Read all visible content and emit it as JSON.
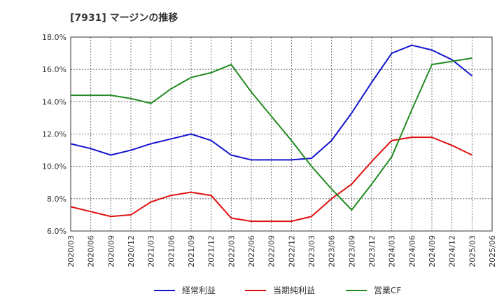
{
  "chart_data": {
    "type": "line",
    "title": "[7931]  マージンの推移",
    "xlabel": "",
    "ylabel": "",
    "ylim": [
      6.0,
      18.0
    ],
    "y_ticks": [
      6.0,
      8.0,
      10.0,
      12.0,
      14.0,
      16.0,
      18.0
    ],
    "y_tick_labels": [
      "6.0%",
      "8.0%",
      "10.0%",
      "12.0%",
      "14.0%",
      "16.0%",
      "18.0%"
    ],
    "categories": [
      "2020/03",
      "2020/06",
      "2020/09",
      "2020/12",
      "2021/03",
      "2021/06",
      "2021/09",
      "2021/12",
      "2022/03",
      "2022/06",
      "2022/09",
      "2022/12",
      "2023/03",
      "2023/06",
      "2023/09",
      "2023/12",
      "2024/03",
      "2024/06",
      "2024/09",
      "2024/12",
      "2025/03",
      "2025/06"
    ],
    "grid": true,
    "legend_position": "bottom",
    "series": [
      {
        "name": "経常利益",
        "color": "#1515d0",
        "values": [
          11.4,
          11.1,
          10.7,
          11.0,
          11.4,
          11.7,
          12.0,
          11.6,
          10.7,
          10.4,
          10.4,
          10.4,
          10.5,
          11.6,
          13.3,
          15.2,
          17.0,
          17.5,
          17.2,
          16.6,
          15.6,
          null
        ]
      },
      {
        "name": "当期純利益",
        "color": "#e01010",
        "values": [
          7.5,
          7.2,
          6.9,
          7.0,
          7.8,
          8.2,
          8.4,
          8.2,
          6.8,
          6.6,
          6.6,
          6.6,
          6.9,
          8.0,
          8.9,
          10.3,
          11.6,
          11.8,
          11.8,
          11.3,
          10.7,
          null
        ]
      },
      {
        "name": "営業CF",
        "color": "#228b22",
        "values": [
          14.4,
          14.4,
          14.4,
          14.2,
          13.9,
          14.8,
          15.5,
          15.8,
          16.3,
          14.6,
          13.1,
          11.6,
          10.0,
          8.6,
          7.3,
          8.9,
          10.6,
          13.5,
          16.3,
          16.5,
          16.7,
          null
        ]
      }
    ]
  }
}
